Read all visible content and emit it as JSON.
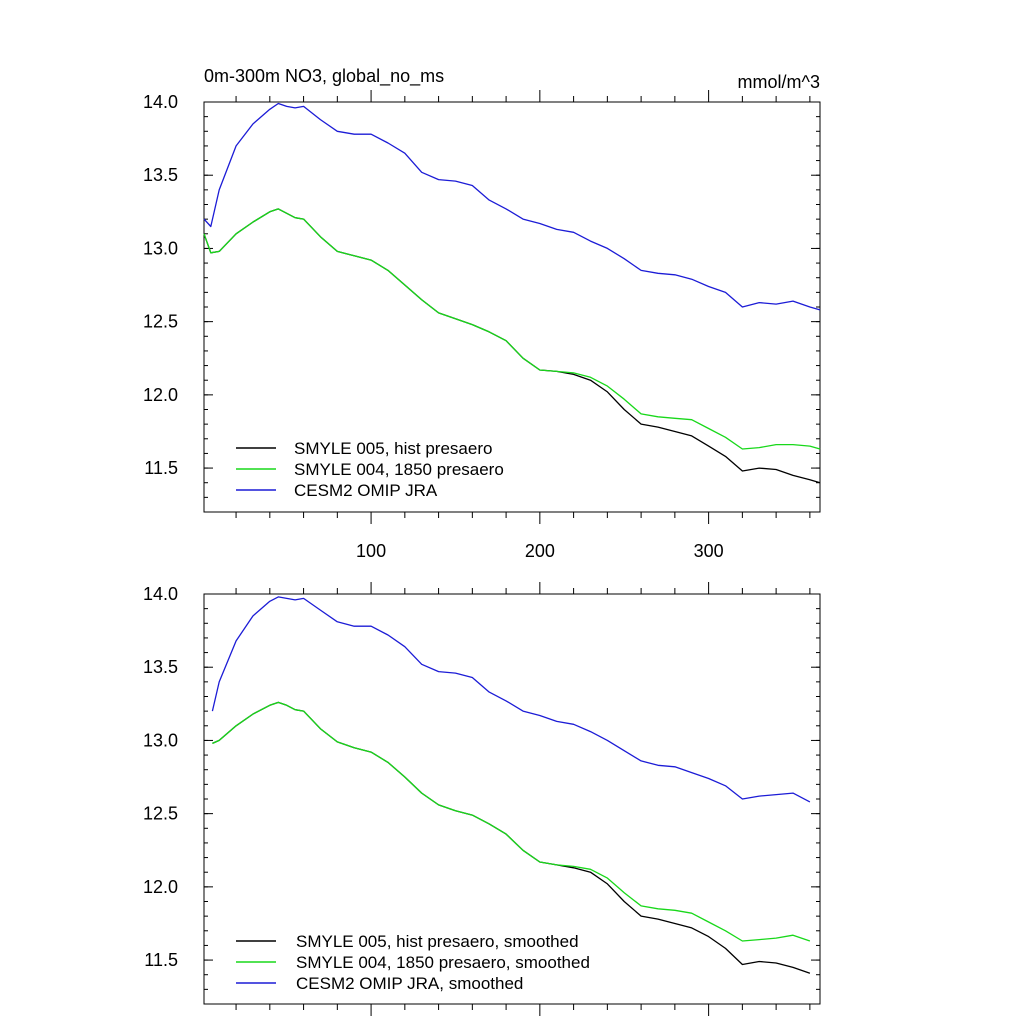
{
  "chart_data": [
    {
      "type": "line",
      "title": "0m-300m NO3, global_no_ms",
      "units": "mmol/m^3",
      "xlim": [
        1,
        366
      ],
      "ylim": [
        11.2,
        14.0
      ],
      "y_ticks": [
        11.5,
        12.0,
        12.5,
        13.0,
        13.5,
        14.0
      ],
      "y_tick_labels": [
        "11.5",
        "12.0",
        "12.5",
        "13.0",
        "13.5",
        "14.0"
      ],
      "x_ticks": [
        100,
        200,
        300
      ],
      "x_tick_labels": [
        "100",
        "200",
        "300"
      ],
      "legend_position": "bottom-left",
      "series": [
        {
          "name": "SMYLE 005, hist presaero",
          "color": "#000000",
          "x": [
            1,
            5,
            10,
            20,
            30,
            40,
            45,
            50,
            55,
            60,
            70,
            80,
            90,
            100,
            110,
            120,
            130,
            140,
            150,
            160,
            170,
            180,
            190,
            200,
            210,
            220,
            230,
            240,
            250,
            260,
            270,
            280,
            290,
            300,
            310,
            320,
            330,
            340,
            350,
            360,
            366
          ],
          "values": [
            13.1,
            12.97,
            12.98,
            13.1,
            13.18,
            13.25,
            13.27,
            13.24,
            13.21,
            13.2,
            13.08,
            12.98,
            12.95,
            12.92,
            12.85,
            12.75,
            12.65,
            12.56,
            12.52,
            12.48,
            12.43,
            12.37,
            12.25,
            12.17,
            12.16,
            12.14,
            12.1,
            12.02,
            11.9,
            11.8,
            11.78,
            11.75,
            11.72,
            11.65,
            11.58,
            11.48,
            11.5,
            11.49,
            11.45,
            11.42,
            11.4
          ]
        },
        {
          "name": "SMYLE 004, 1850 presaero",
          "color": "#18d81a",
          "x": [
            1,
            5,
            10,
            20,
            30,
            40,
            45,
            50,
            55,
            60,
            70,
            80,
            90,
            100,
            110,
            120,
            130,
            140,
            150,
            160,
            170,
            180,
            190,
            200,
            210,
            220,
            230,
            240,
            250,
            260,
            270,
            280,
            290,
            300,
            310,
            320,
            330,
            340,
            350,
            360,
            366
          ],
          "values": [
            13.1,
            12.97,
            12.98,
            13.1,
            13.18,
            13.25,
            13.27,
            13.24,
            13.21,
            13.2,
            13.08,
            12.98,
            12.95,
            12.92,
            12.85,
            12.75,
            12.65,
            12.56,
            12.52,
            12.48,
            12.43,
            12.37,
            12.25,
            12.17,
            12.16,
            12.15,
            12.12,
            12.06,
            11.97,
            11.87,
            11.85,
            11.84,
            11.83,
            11.77,
            11.71,
            11.63,
            11.64,
            11.66,
            11.66,
            11.65,
            11.63
          ]
        },
        {
          "name": "CESM2 OMIP JRA",
          "color": "#1c1cd6",
          "x": [
            1,
            5,
            10,
            20,
            30,
            40,
            45,
            50,
            55,
            60,
            70,
            80,
            90,
            100,
            110,
            120,
            130,
            140,
            150,
            160,
            170,
            180,
            190,
            200,
            210,
            220,
            230,
            240,
            250,
            260,
            270,
            280,
            290,
            300,
            310,
            320,
            330,
            340,
            350,
            360,
            366
          ],
          "values": [
            13.2,
            13.15,
            13.4,
            13.7,
            13.85,
            13.95,
            13.99,
            13.97,
            13.96,
            13.97,
            13.88,
            13.8,
            13.78,
            13.78,
            13.72,
            13.65,
            13.52,
            13.47,
            13.46,
            13.43,
            13.33,
            13.27,
            13.2,
            13.17,
            13.13,
            13.11,
            13.05,
            13.0,
            12.93,
            12.85,
            12.83,
            12.82,
            12.79,
            12.74,
            12.7,
            12.6,
            12.63,
            12.62,
            12.64,
            12.6,
            12.58
          ]
        }
      ]
    },
    {
      "type": "line",
      "xlim": [
        1,
        366
      ],
      "ylim": [
        11.2,
        14.0
      ],
      "y_ticks": [
        11.5,
        12.0,
        12.5,
        13.0,
        13.5,
        14.0
      ],
      "y_tick_labels": [
        "11.5",
        "12.0",
        "12.5",
        "13.0",
        "13.5",
        "14.0"
      ],
      "x_ticks": [
        100,
        200,
        300
      ],
      "legend_position": "bottom-left",
      "series": [
        {
          "name": "SMYLE 005, hist presaero, smoothed",
          "color": "#000000",
          "x": [
            6,
            10,
            20,
            30,
            40,
            45,
            50,
            55,
            60,
            70,
            80,
            90,
            100,
            110,
            120,
            130,
            140,
            150,
            160,
            170,
            180,
            190,
            200,
            210,
            220,
            230,
            240,
            250,
            260,
            270,
            280,
            290,
            300,
            310,
            320,
            330,
            340,
            350,
            360
          ],
          "values": [
            12.98,
            13.0,
            13.1,
            13.18,
            13.24,
            13.26,
            13.24,
            13.21,
            13.2,
            13.08,
            12.99,
            12.95,
            12.92,
            12.85,
            12.75,
            12.64,
            12.56,
            12.52,
            12.49,
            12.43,
            12.36,
            12.25,
            12.17,
            12.15,
            12.13,
            12.1,
            12.02,
            11.9,
            11.8,
            11.78,
            11.75,
            11.72,
            11.66,
            11.58,
            11.47,
            11.49,
            11.48,
            11.45,
            11.41
          ]
        },
        {
          "name": "SMYLE 004, 1850 presaero, smoothed",
          "color": "#18d81a",
          "x": [
            6,
            10,
            20,
            30,
            40,
            45,
            50,
            55,
            60,
            70,
            80,
            90,
            100,
            110,
            120,
            130,
            140,
            150,
            160,
            170,
            180,
            190,
            200,
            210,
            220,
            230,
            240,
            250,
            260,
            270,
            280,
            290,
            300,
            310,
            320,
            330,
            340,
            350,
            360
          ],
          "values": [
            12.98,
            13.0,
            13.1,
            13.18,
            13.24,
            13.26,
            13.24,
            13.21,
            13.2,
            13.08,
            12.99,
            12.95,
            12.92,
            12.85,
            12.75,
            12.64,
            12.56,
            12.52,
            12.49,
            12.43,
            12.36,
            12.25,
            12.17,
            12.15,
            12.14,
            12.12,
            12.06,
            11.96,
            11.87,
            11.85,
            11.84,
            11.82,
            11.76,
            11.7,
            11.63,
            11.64,
            11.65,
            11.67,
            11.63
          ]
        },
        {
          "name": "CESM2 OMIP JRA, smoothed",
          "color": "#1c1cd6",
          "x": [
            6,
            10,
            20,
            30,
            40,
            45,
            50,
            55,
            60,
            70,
            80,
            90,
            100,
            110,
            120,
            130,
            140,
            150,
            160,
            170,
            180,
            190,
            200,
            210,
            220,
            230,
            240,
            250,
            260,
            270,
            280,
            290,
            300,
            310,
            320,
            330,
            340,
            350,
            360
          ],
          "values": [
            13.2,
            13.4,
            13.68,
            13.85,
            13.95,
            13.98,
            13.97,
            13.96,
            13.97,
            13.89,
            13.81,
            13.78,
            13.78,
            13.72,
            13.64,
            13.52,
            13.47,
            13.46,
            13.43,
            13.33,
            13.27,
            13.2,
            13.17,
            13.13,
            13.11,
            13.06,
            13.0,
            12.93,
            12.86,
            12.83,
            12.82,
            12.78,
            12.74,
            12.69,
            12.6,
            12.62,
            12.63,
            12.64,
            12.58
          ]
        }
      ]
    }
  ]
}
